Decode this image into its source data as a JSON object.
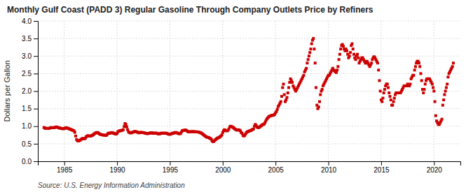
{
  "chart_data": {
    "type": "scatter",
    "title": "Monthly Gulf Coast (PADD 3) Regular Gasoline Through Company Outlets Price by Refiners",
    "y_label": "Dollars per Gallon",
    "source": "Source: U.S. Energy Information Administration",
    "color": "#cc0000",
    "marker": "square",
    "grid": true,
    "xlim": [
      1982.5,
      2022.5
    ],
    "xticks": [
      1985,
      1990,
      1995,
      2000,
      2005,
      2010,
      2015,
      2020
    ],
    "ylim": [
      0.0,
      4.0
    ],
    "yticks": [
      {
        "value": 0.0,
        "label": "0.0"
      },
      0.5,
      {
        "value": 1.0,
        "label": "1.0"
      },
      1.5,
      {
        "value": 2.0,
        "label": "2.0"
      },
      2.5,
      {
        "value": 3.0,
        "label": "3.0"
      },
      3.5,
      {
        "value": 4.0,
        "label": "4.0"
      }
    ],
    "x": [
      1983.083,
      1983.167,
      1983.25,
      1983.333,
      1983.417,
      1983.5,
      1983.583,
      1983.667,
      1983.75,
      1983.833,
      1983.917,
      1984.0,
      1984.083,
      1984.167,
      1984.25,
      1984.333,
      1984.417,
      1984.5,
      1984.583,
      1984.667,
      1984.75,
      1984.833,
      1984.917,
      1985.0,
      1985.083,
      1985.167,
      1985.25,
      1985.333,
      1985.417,
      1985.5,
      1985.583,
      1985.667,
      1985.75,
      1985.833,
      1985.917,
      1986.0,
      1986.083,
      1986.167,
      1986.25,
      1986.333,
      1986.417,
      1986.5,
      1986.583,
      1986.667,
      1986.75,
      1986.833,
      1986.917,
      1987.0,
      1987.083,
      1987.167,
      1987.25,
      1987.333,
      1987.417,
      1987.5,
      1987.583,
      1987.667,
      1987.75,
      1987.833,
      1987.917,
      1988.0,
      1988.083,
      1988.167,
      1988.25,
      1988.333,
      1988.417,
      1988.5,
      1988.583,
      1988.667,
      1988.75,
      1988.833,
      1988.917,
      1989.0,
      1989.083,
      1989.167,
      1989.25,
      1989.333,
      1989.417,
      1989.5,
      1989.583,
      1989.667,
      1989.75,
      1989.833,
      1989.917,
      1990.0,
      1990.083,
      1990.167,
      1990.25,
      1990.333,
      1990.417,
      1990.5,
      1990.583,
      1990.667,
      1990.75,
      1990.833,
      1990.917,
      1991.0,
      1991.083,
      1991.167,
      1991.25,
      1991.333,
      1991.417,
      1991.5,
      1991.583,
      1991.667,
      1991.75,
      1991.833,
      1991.917,
      1992.0,
      1992.083,
      1992.167,
      1992.25,
      1992.333,
      1992.417,
      1992.5,
      1992.583,
      1992.667,
      1992.75,
      1992.833,
      1992.917,
      1993.0,
      1993.083,
      1993.167,
      1993.25,
      1993.333,
      1993.417,
      1993.5,
      1993.583,
      1993.667,
      1993.75,
      1993.833,
      1993.917,
      1994.0,
      1994.083,
      1994.167,
      1994.25,
      1994.333,
      1994.417,
      1994.5,
      1994.583,
      1994.667,
      1994.75,
      1994.833,
      1994.917,
      1995.0,
      1995.083,
      1995.167,
      1995.25,
      1995.333,
      1995.417,
      1995.5,
      1995.583,
      1995.667,
      1995.75,
      1995.833,
      1995.917,
      1996.0,
      1996.083,
      1996.167,
      1996.25,
      1996.333,
      1996.417,
      1996.5,
      1996.583,
      1996.667,
      1996.75,
      1996.833,
      1996.917,
      1997.0,
      1997.083,
      1997.167,
      1997.25,
      1997.333,
      1997.417,
      1997.5,
      1997.583,
      1997.667,
      1997.75,
      1997.833,
      1997.917,
      1998.0,
      1998.083,
      1998.167,
      1998.25,
      1998.333,
      1998.417,
      1998.5,
      1998.583,
      1998.667,
      1998.75,
      1998.833,
      1998.917,
      1999.0,
      1999.083,
      1999.167,
      1999.25,
      1999.333,
      1999.417,
      1999.5,
      1999.583,
      1999.667,
      1999.75,
      1999.833,
      1999.917,
      2000.0,
      2000.083,
      2000.167,
      2000.25,
      2000.333,
      2000.417,
      2000.5,
      2000.583,
      2000.667,
      2000.75,
      2000.833,
      2000.917,
      2001.0,
      2001.083,
      2001.167,
      2001.25,
      2001.333,
      2001.417,
      2001.5,
      2001.583,
      2001.667,
      2001.75,
      2001.833,
      2001.917,
      2002.0,
      2002.083,
      2002.167,
      2002.25,
      2002.333,
      2002.417,
      2002.5,
      2002.583,
      2002.667,
      2002.75,
      2002.833,
      2002.917,
      2003.0,
      2003.083,
      2003.167,
      2003.25,
      2003.333,
      2003.417,
      2003.5,
      2003.583,
      2003.667,
      2003.75,
      2003.833,
      2003.917,
      2004.0,
      2004.083,
      2004.167,
      2004.25,
      2004.333,
      2004.417,
      2004.5,
      2004.583,
      2004.667,
      2004.75,
      2004.833,
      2004.917,
      2005.0,
      2005.083,
      2005.167,
      2005.25,
      2005.333,
      2005.417,
      2005.5,
      2005.583,
      2005.667,
      2005.75,
      2005.833,
      2005.917,
      2006.0,
      2006.083,
      2006.167,
      2006.25,
      2006.333,
      2006.417,
      2006.5,
      2006.583,
      2006.667,
      2006.75,
      2006.833,
      2006.917,
      2007.0,
      2007.083,
      2007.167,
      2007.25,
      2007.333,
      2007.417,
      2007.5,
      2007.583,
      2007.667,
      2007.75,
      2007.833,
      2007.917,
      2008.0,
      2008.083,
      2008.167,
      2008.25,
      2008.333,
      2008.417,
      2008.5,
      2008.583,
      2008.667,
      2008.75,
      2008.833,
      2008.917,
      2009.0,
      2009.083,
      2009.167,
      2009.25,
      2009.333,
      2009.417,
      2009.5,
      2009.583,
      2009.667,
      2009.75,
      2009.833,
      2009.917,
      2010.0,
      2010.083,
      2010.167,
      2010.25,
      2010.333,
      2010.417,
      2010.5,
      2010.583,
      2010.667,
      2010.75,
      2010.833,
      2010.917,
      2011.0,
      2011.083,
      2011.167,
      2011.25,
      2011.333,
      2011.417,
      2011.5,
      2011.583,
      2011.667,
      2011.75,
      2011.833,
      2011.917,
      2012.0,
      2012.083,
      2012.167,
      2012.25,
      2012.333,
      2012.417,
      2012.5,
      2012.583,
      2012.667,
      2012.75,
      2012.833,
      2012.917,
      2013.0,
      2013.083,
      2013.167,
      2013.25,
      2013.333,
      2013.417,
      2013.5,
      2013.583,
      2013.667,
      2013.75,
      2013.833,
      2013.917,
      2014.0,
      2014.083,
      2014.167,
      2014.25,
      2014.333,
      2014.417,
      2014.5,
      2014.583,
      2014.667,
      2014.75,
      2014.833,
      2014.917,
      2015.0,
      2015.083,
      2015.167,
      2015.25,
      2015.333,
      2015.417,
      2015.5,
      2015.583,
      2015.667,
      2015.75,
      2015.833,
      2015.917,
      2016.0,
      2016.083,
      2016.167,
      2016.25,
      2016.333,
      2016.417,
      2016.5,
      2016.583,
      2016.667,
      2016.75,
      2016.833,
      2016.917,
      2017.0,
      2017.083,
      2017.167,
      2017.25,
      2017.333,
      2017.417,
      2017.5,
      2017.583,
      2017.667,
      2017.75,
      2017.833,
      2017.917,
      2018.0,
      2018.083,
      2018.167,
      2018.25,
      2018.333,
      2018.417,
      2018.5,
      2018.583,
      2018.667,
      2018.75,
      2018.833,
      2018.917,
      2019.0,
      2019.083,
      2019.167,
      2019.25,
      2019.333,
      2019.417,
      2019.5,
      2019.583,
      2019.667,
      2019.75,
      2019.833,
      2019.917,
      2020.0,
      2020.083,
      2020.167,
      2020.25,
      2020.333,
      2020.417,
      2020.5,
      2020.583,
      2020.667,
      2020.75,
      2020.833,
      2020.917,
      2021.0,
      2021.083,
      2021.167,
      2021.25,
      2021.333,
      2021.417,
      2021.5,
      2021.583,
      2021.667,
      2021.75,
      2021.833
    ],
    "values": [
      0.963,
      0.946,
      0.94,
      0.938,
      0.935,
      0.935,
      0.94,
      0.952,
      0.96,
      0.958,
      0.955,
      0.955,
      0.96,
      0.975,
      0.98,
      0.972,
      0.96,
      0.952,
      0.948,
      0.94,
      0.935,
      0.93,
      0.928,
      0.935,
      0.945,
      0.958,
      0.95,
      0.94,
      0.932,
      0.92,
      0.91,
      0.9,
      0.89,
      0.88,
      0.87,
      0.825,
      0.72,
      0.62,
      0.59,
      0.58,
      0.59,
      0.6,
      0.62,
      0.64,
      0.65,
      0.65,
      0.64,
      0.66,
      0.7,
      0.72,
      0.73,
      0.72,
      0.72,
      0.72,
      0.73,
      0.74,
      0.76,
      0.78,
      0.8,
      0.81,
      0.82,
      0.82,
      0.8,
      0.78,
      0.77,
      0.76,
      0.755,
      0.75,
      0.745,
      0.74,
      0.735,
      0.745,
      0.77,
      0.8,
      0.8,
      0.8,
      0.81,
      0.82,
      0.81,
      0.8,
      0.79,
      0.78,
      0.775,
      0.8,
      0.84,
      0.86,
      0.87,
      0.87,
      0.88,
      0.885,
      0.9,
      0.99,
      1.075,
      1.05,
      0.98,
      0.9,
      0.84,
      0.82,
      0.81,
      0.81,
      0.82,
      0.83,
      0.84,
      0.85,
      0.85,
      0.84,
      0.83,
      0.82,
      0.81,
      0.82,
      0.825,
      0.82,
      0.82,
      0.815,
      0.81,
      0.8,
      0.795,
      0.79,
      0.79,
      0.795,
      0.8,
      0.81,
      0.81,
      0.808,
      0.8,
      0.8,
      0.8,
      0.805,
      0.8,
      0.79,
      0.78,
      0.78,
      0.79,
      0.8,
      0.8,
      0.8,
      0.8,
      0.8,
      0.8,
      0.8,
      0.79,
      0.78,
      0.77,
      0.77,
      0.775,
      0.79,
      0.8,
      0.8,
      0.81,
      0.82,
      0.82,
      0.81,
      0.8,
      0.79,
      0.785,
      0.79,
      0.83,
      0.87,
      0.88,
      0.88,
      0.89,
      0.89,
      0.875,
      0.855,
      0.84,
      0.84,
      0.84,
      0.845,
      0.845,
      0.845,
      0.845,
      0.84,
      0.84,
      0.84,
      0.838,
      0.835,
      0.83,
      0.82,
      0.81,
      0.8,
      0.78,
      0.76,
      0.74,
      0.72,
      0.7,
      0.69,
      0.68,
      0.68,
      0.66,
      0.65,
      0.63,
      0.58,
      0.56,
      0.57,
      0.6,
      0.62,
      0.64,
      0.66,
      0.67,
      0.68,
      0.7,
      0.72,
      0.75,
      0.82,
      0.87,
      0.9,
      0.88,
      0.87,
      0.87,
      0.88,
      0.92,
      0.98,
      1.0,
      0.99,
      0.98,
      0.96,
      0.94,
      0.92,
      0.9,
      0.89,
      0.89,
      0.9,
      0.89,
      0.87,
      0.82,
      0.8,
      0.74,
      0.72,
      0.74,
      0.78,
      0.82,
      0.84,
      0.85,
      0.86,
      0.87,
      0.88,
      0.89,
      0.91,
      0.92,
      1.0,
      1.05,
      1.02,
      0.98,
      0.96,
      0.96,
      0.98,
      1.0,
      1.02,
      1.04,
      1.05,
      1.06,
      1.1,
      1.15,
      1.2,
      1.23,
      1.26,
      1.28,
      1.29,
      1.3,
      1.31,
      1.31,
      1.32,
      1.34,
      1.38,
      1.42,
      1.48,
      1.56,
      1.6,
      1.65,
      1.7,
      1.85,
      2.1,
      2.2,
      1.9,
      1.7,
      1.75,
      1.82,
      1.95,
      2.1,
      2.25,
      2.35,
      2.3,
      2.25,
      2.15,
      2.1,
      2.05,
      2.0,
      2.05,
      2.1,
      2.15,
      2.2,
      2.25,
      2.3,
      2.35,
      2.4,
      2.45,
      2.55,
      2.6,
      2.65,
      2.8,
      2.9,
      3.0,
      3.1,
      3.2,
      3.35,
      3.45,
      3.5,
      3.2,
      2.8,
      2.1,
      1.6,
      1.5,
      1.55,
      1.7,
      1.9,
      2.0,
      2.05,
      2.15,
      2.2,
      2.25,
      2.3,
      2.35,
      2.4,
      2.45,
      2.45,
      2.5,
      2.55,
      2.6,
      2.65,
      2.6,
      2.58,
      2.55,
      2.53,
      2.6,
      2.7,
      2.9,
      3.05,
      3.2,
      3.3,
      3.33,
      3.28,
      3.2,
      3.15,
      3.2,
      3.15,
      3.05,
      2.95,
      3.0,
      3.1,
      3.3,
      3.35,
      3.2,
      3.05,
      2.95,
      2.9,
      3.0,
      3.05,
      2.95,
      2.8,
      2.85,
      2.9,
      2.95,
      2.95,
      2.9,
      2.85,
      2.8,
      2.8,
      2.85,
      2.8,
      2.75,
      2.7,
      2.75,
      2.8,
      2.9,
      2.95,
      2.98,
      2.95,
      2.9,
      2.85,
      2.8,
      2.6,
      2.3,
      2.0,
      1.75,
      1.7,
      1.8,
      1.95,
      2.05,
      2.15,
      2.2,
      2.2,
      2.1,
      1.95,
      1.85,
      1.75,
      1.6,
      1.6,
      1.7,
      1.8,
      1.9,
      1.95,
      1.95,
      1.95,
      1.95,
      1.95,
      1.95,
      2.0,
      2.05,
      2.1,
      2.15,
      2.15,
      2.15,
      2.15,
      2.2,
      2.15,
      2.15,
      2.2,
      2.35,
      2.4,
      2.45,
      2.45,
      2.6,
      2.7,
      2.8,
      2.85,
      2.85,
      2.8,
      2.7,
      2.5,
      2.3,
      2.05,
      1.95,
      2.05,
      2.2,
      2.3,
      2.35,
      2.35,
      2.35,
      2.35,
      2.3,
      2.25,
      2.2,
      2.1,
      2.0,
      1.7,
      1.3,
      1.15,
      1.1,
      1.05,
      1.05,
      1.1,
      1.15,
      1.2,
      1.6,
      1.75,
      1.9,
      2.0,
      2.1,
      2.2,
      2.4,
      2.5,
      2.55,
      2.6,
      2.65,
      2.7,
      2.8
    ]
  }
}
